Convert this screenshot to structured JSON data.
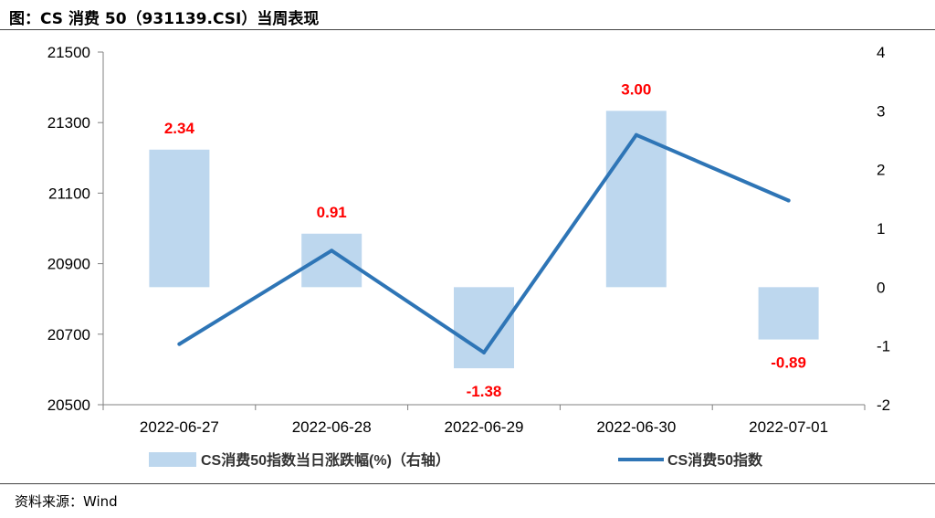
{
  "header": {
    "title": "图：CS 消费 50（931139.CSI）当周表现"
  },
  "footer": {
    "source": "资料来源：Wind"
  },
  "colors": {
    "bar": "#bdd7ee",
    "line": "#2e75b6",
    "label": "#ff0000",
    "axis": "#808080"
  },
  "chart_data": {
    "type": "bar+line",
    "categories": [
      "2022-06-27",
      "2022-06-28",
      "2022-06-29",
      "2022-06-30",
      "2022-07-01"
    ],
    "series": [
      {
        "name": "CS消费50指数当日涨跌幅(%)（右轴）",
        "type": "bar",
        "axis": "right",
        "values": [
          2.34,
          0.91,
          -1.38,
          3.0,
          -0.89
        ]
      },
      {
        "name": "CS消费50指数",
        "type": "line",
        "axis": "left",
        "values": [
          20672,
          20937,
          20648,
          21265,
          21079
        ]
      }
    ],
    "data_labels": [
      "2.34",
      "0.91",
      "-1.38",
      "3.00",
      "-0.89"
    ],
    "y_left": {
      "lim": [
        20500,
        21500
      ],
      "ticks": [
        "20500",
        "20700",
        "20900",
        "21100",
        "21300",
        "21500"
      ]
    },
    "y_right": {
      "lim": [
        -2,
        4
      ],
      "ticks": [
        "-2",
        "-1",
        "0",
        "1",
        "2",
        "3",
        "4"
      ]
    },
    "grid": false,
    "legend": "bottom"
  }
}
